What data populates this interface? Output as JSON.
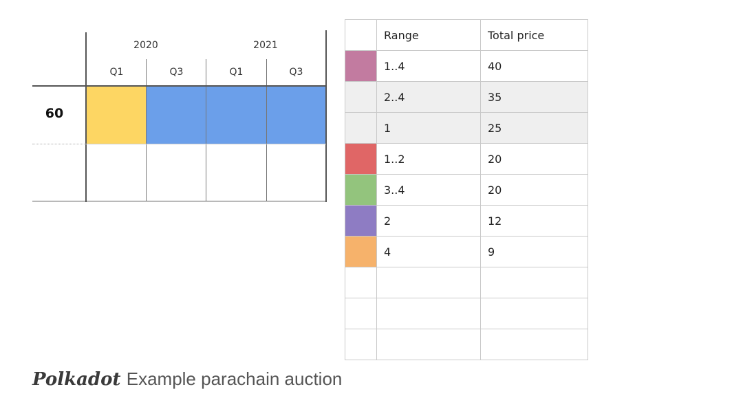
{
  "timeline": {
    "years": [
      "2020",
      "2021"
    ],
    "quarters": [
      "Q1",
      "Q3",
      "Q1",
      "Q3"
    ],
    "row_label": "60",
    "cells": [
      {
        "color": "#FDD663"
      },
      {
        "color": "#6B9FEA"
      },
      {
        "color": "#6B9FEA"
      },
      {
        "color": "#6B9FEA"
      }
    ]
  },
  "table": {
    "headers": {
      "range": "Range",
      "price": "Total price"
    },
    "rows": [
      {
        "color": "#C27BA0",
        "range": "1..4",
        "price": "40"
      },
      {
        "color": "#EFEFEF",
        "range": "2..4",
        "price": "35"
      },
      {
        "color": "#EFEFEF",
        "range": "1",
        "price": "25"
      },
      {
        "color": "#E06666",
        "range": "1..2",
        "price": "20"
      },
      {
        "color": "#93C47D",
        "range": "3..4",
        "price": "20"
      },
      {
        "color": "#8E7CC3",
        "range": "2",
        "price": "12"
      },
      {
        "color": "#F6B26B",
        "range": "4",
        "price": "9"
      },
      {
        "color": "#FFFFFF",
        "range": "",
        "price": ""
      },
      {
        "color": "#FFFFFF",
        "range": "",
        "price": ""
      },
      {
        "color": "#FFFFFF",
        "range": "",
        "price": ""
      }
    ]
  },
  "footer": {
    "brand": "Polkadot",
    "title": "Example parachain auction"
  }
}
